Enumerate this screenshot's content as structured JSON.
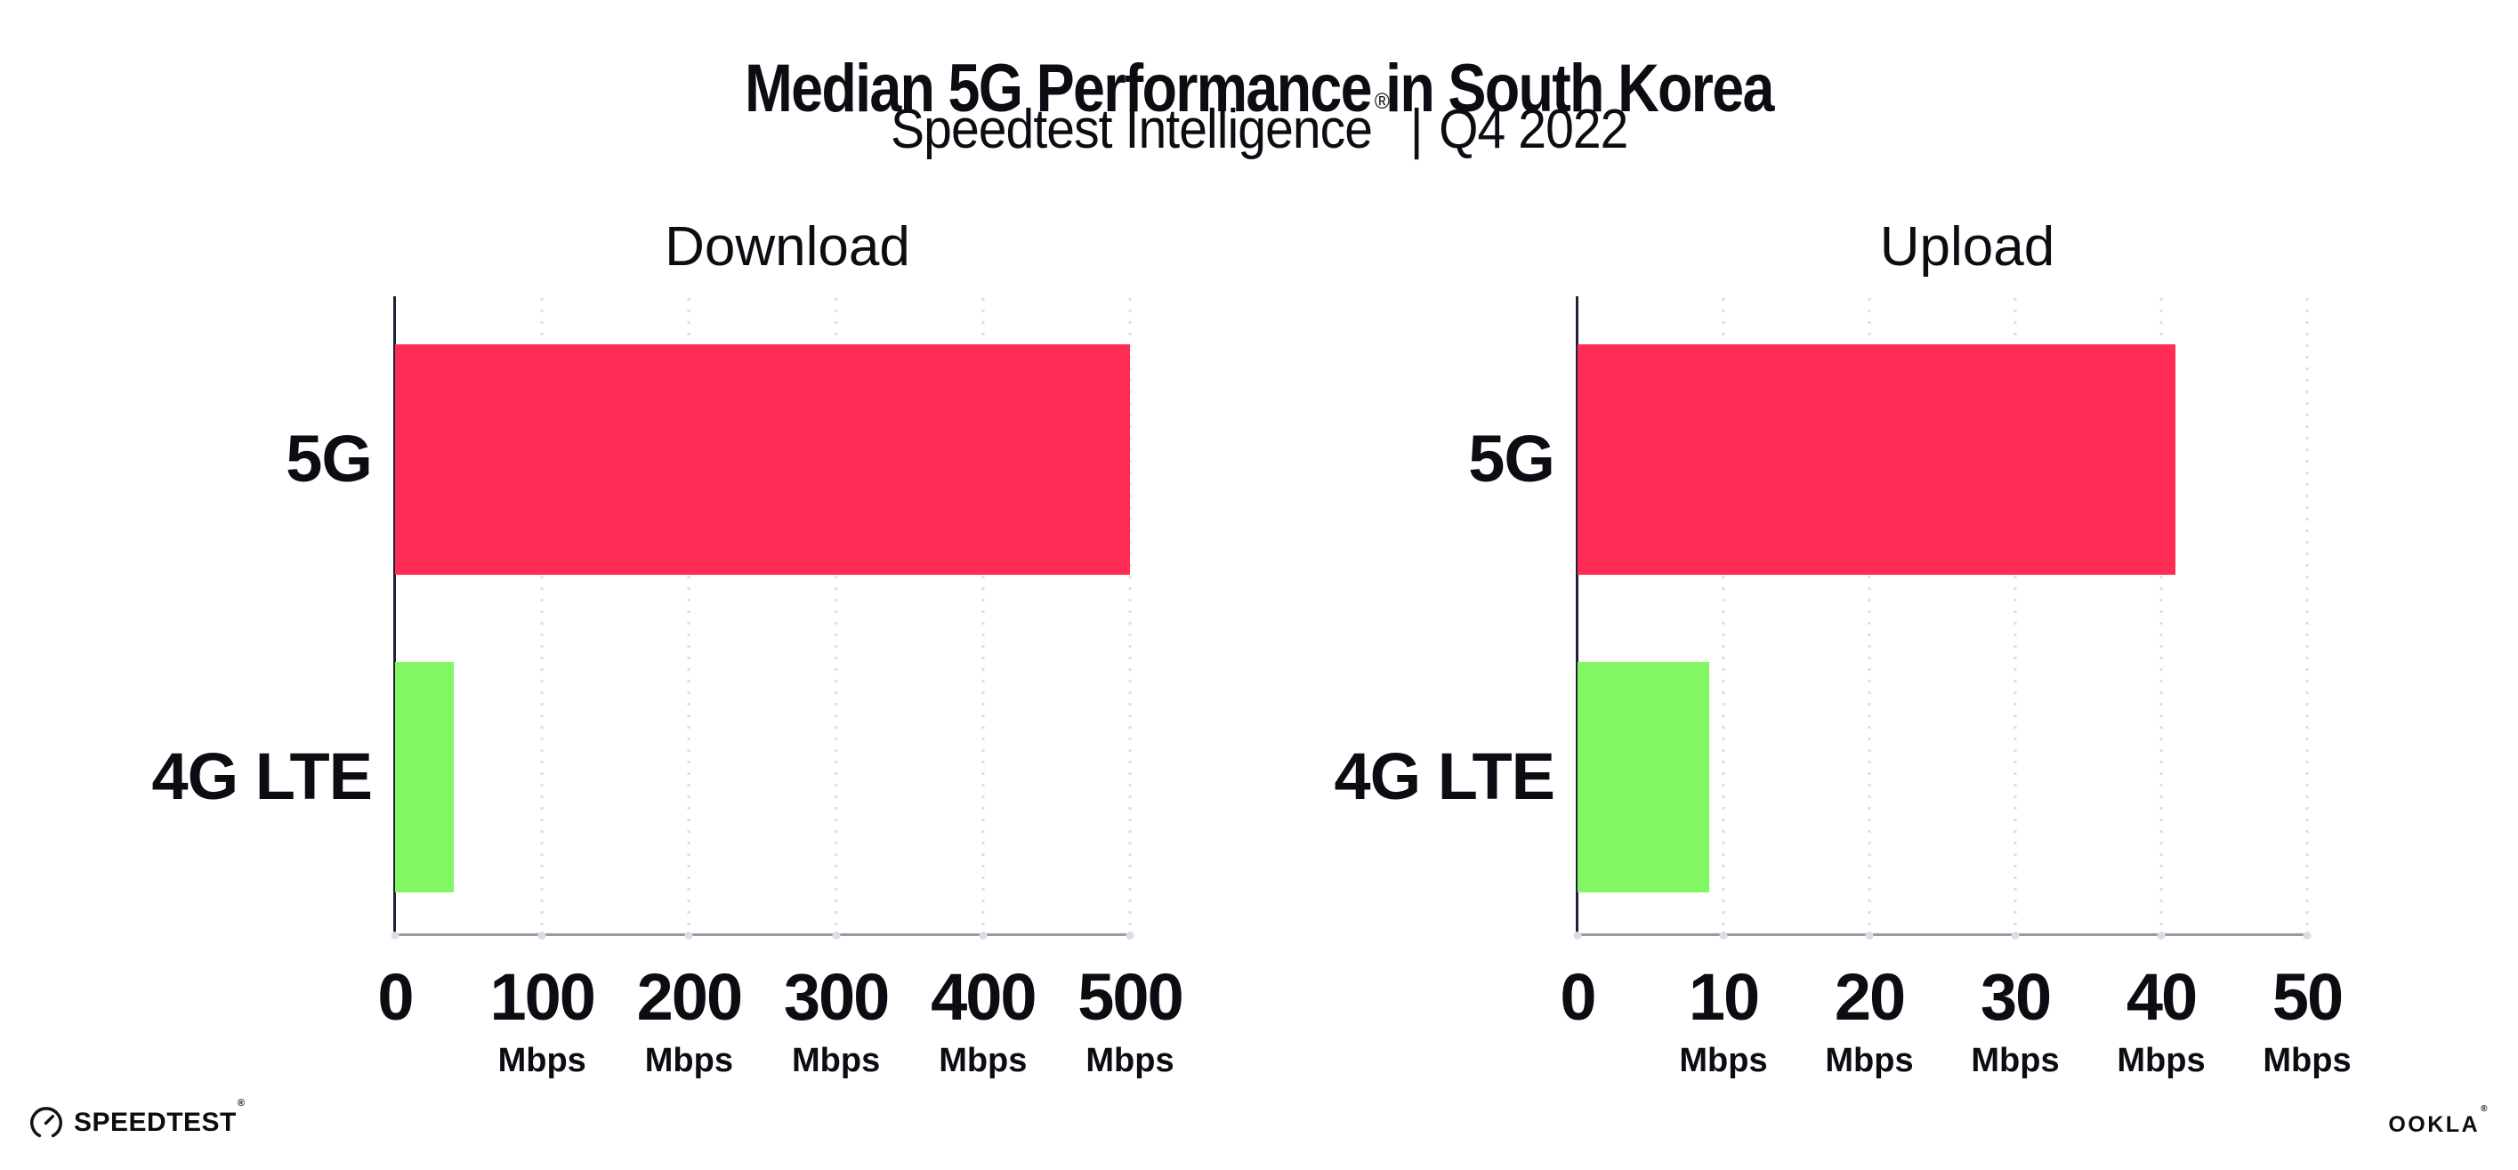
{
  "header": {
    "title": "Median 5G Performance in South Korea",
    "subtitle_brand": "Speedtest Intelligence",
    "subtitle_registered": "®",
    "subtitle_separator": "|",
    "subtitle_period": "Q4 2022"
  },
  "chart_data": [
    {
      "type": "bar",
      "orientation": "horizontal",
      "title": "Download",
      "categories": [
        "5G",
        "4G LTE"
      ],
      "values": [
        500,
        40
      ],
      "unit": "Mbps",
      "xlim": [
        0,
        500
      ],
      "xticks": [
        0,
        100,
        200,
        300,
        400,
        500
      ],
      "bar_colors": [
        "#ff2d56",
        "#81f863"
      ],
      "grid": "dotted-vertical",
      "legend": "none"
    },
    {
      "type": "bar",
      "orientation": "horizontal",
      "title": "Upload",
      "categories": [
        "5G",
        "4G LTE"
      ],
      "values": [
        41,
        9
      ],
      "unit": "Mbps",
      "xlim": [
        0,
        50
      ],
      "xticks": [
        0,
        10,
        20,
        30,
        40,
        50
      ],
      "bar_colors": [
        "#ff2d56",
        "#81f863"
      ],
      "grid": "dotted-vertical",
      "legend": "none"
    }
  ],
  "colors": {
    "background": "#ffffff",
    "text": "#0c0c12",
    "bar_5g": "#ff2d56",
    "bar_4g_lte": "#81f863",
    "axis_y": "#20203a",
    "axis_x": "#9a9aa4",
    "gridline": "#dcdce8"
  },
  "footer": {
    "speedtest_gauge_icon": "speedtest-gauge-icon",
    "speedtest_wordmark": "SPEEDTEST",
    "speedtest_registered": "®",
    "ookla_wordmark": "OOKLA",
    "ookla_registered": "®"
  }
}
